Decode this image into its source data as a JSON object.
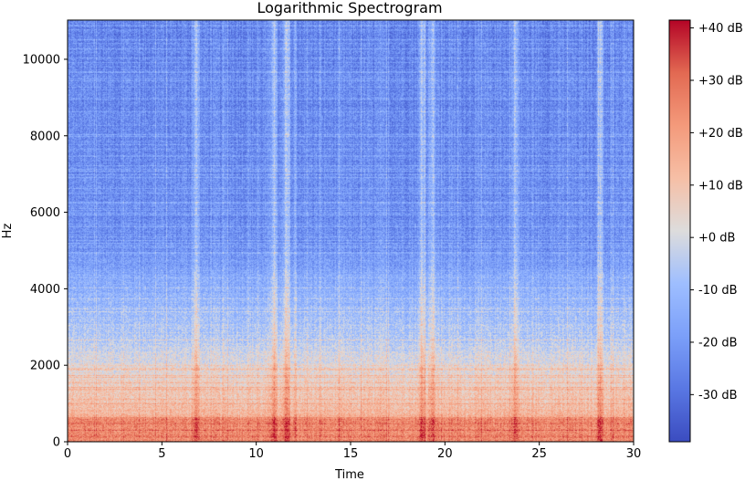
{
  "chart_data": {
    "type": "heatmap",
    "title": "Logarithmic Spectrogram",
    "xlabel": "Time",
    "ylabel": "Hz",
    "xlim": [
      0,
      30
    ],
    "ylim": [
      0,
      11025
    ],
    "x_ticks": [
      0,
      5,
      10,
      15,
      20,
      25,
      30
    ],
    "x_tick_labels": [
      "0",
      "5",
      "10",
      "15",
      "20",
      "25",
      "30"
    ],
    "y_ticks": [
      0,
      2000,
      4000,
      6000,
      8000,
      10000
    ],
    "y_tick_labels": [
      "0",
      "2000",
      "4000",
      "6000",
      "8000",
      "10000"
    ],
    "colormap": "coolwarm",
    "colorbar": {
      "min": -39,
      "max": 41.5,
      "ticks": [
        40,
        30,
        20,
        10,
        0,
        -10,
        -20,
        -30
      ],
      "tick_labels": [
        "+40 dB",
        "+30 dB",
        "+20 dB",
        "+10 dB",
        "+0 dB",
        "-10 dB",
        "-20 dB",
        "-30 dB"
      ]
    },
    "features": {
      "onset_times": [
        6.8,
        10.9,
        11.6,
        18.8,
        19.3,
        23.7,
        28.2
      ],
      "low_frequency_energy_db": 25,
      "high_frequency_energy_db": -25
    }
  }
}
